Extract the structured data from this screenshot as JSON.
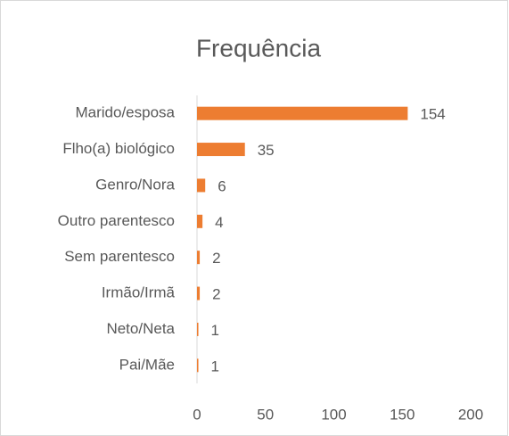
{
  "chart_data": {
    "type": "bar",
    "orientation": "horizontal",
    "title": "Frequência",
    "categories": [
      "Marido/esposa",
      "Flho(a) biológico",
      "Genro/Nora",
      "Outro parentesco",
      "Sem parentesco",
      "Irmão/Irmã",
      "Neto/Neta",
      "Pai/Mãe"
    ],
    "values": [
      154,
      35,
      6,
      4,
      2,
      2,
      1,
      1
    ],
    "color": "#ED7D31",
    "xlim": [
      0,
      200
    ],
    "xticks": [
      0,
      50,
      100,
      150,
      200
    ],
    "grid": false
  }
}
